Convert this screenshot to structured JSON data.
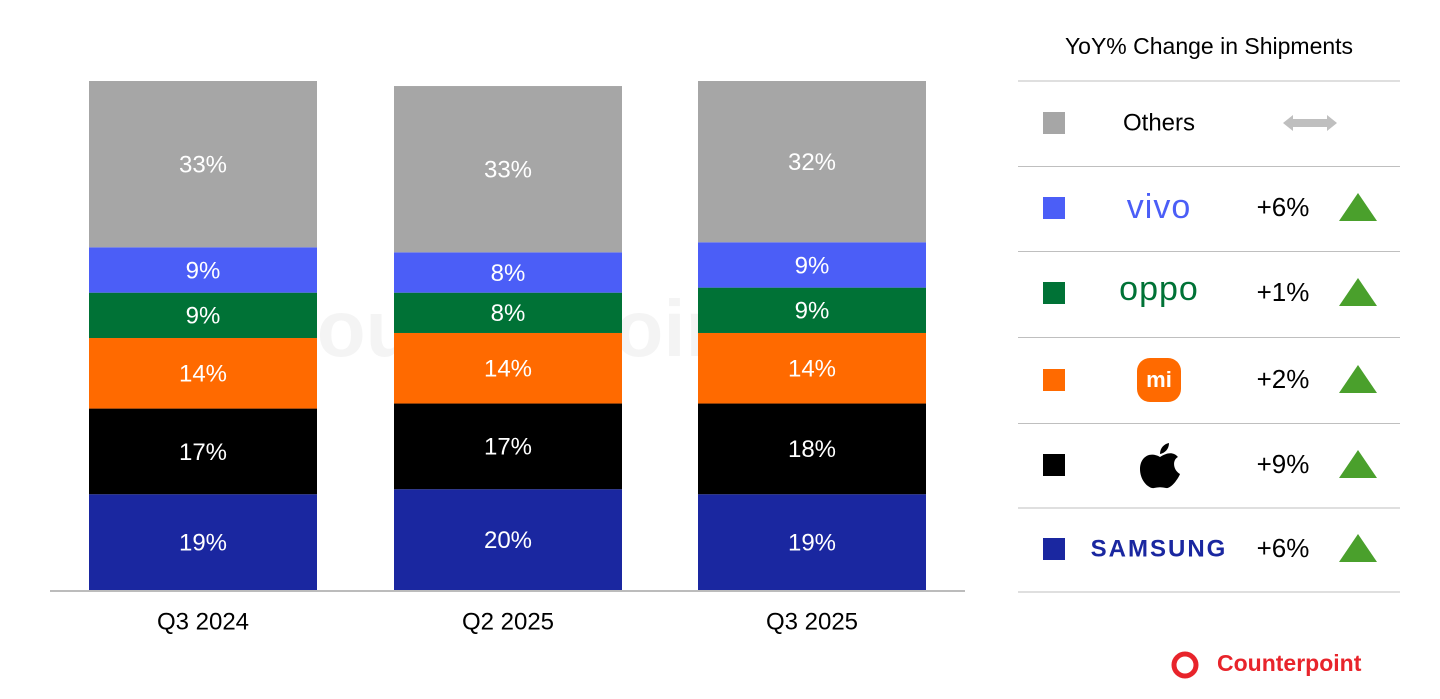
{
  "chart_data": {
    "type": "stacked_bar",
    "categories": [
      "Q3 2024",
      "Q2 2025",
      "Q3 2025"
    ],
    "ylim": [
      0,
      101
    ],
    "series": [
      {
        "name": "SAMSUNG",
        "color": "#1a27a0",
        "values": [
          19,
          20,
          19
        ],
        "value_labels": [
          "19%",
          "20%",
          "19%"
        ],
        "yoy": "+6%"
      },
      {
        "color": "#000000",
        "values": [
          17,
          17,
          18
        ],
        "value_labels": [
          "17%",
          "17%",
          "18%"
        ],
        "yoy": "+9%"
      },
      {
        "name": "mi",
        "color": "#ff6a00",
        "values": [
          14,
          14,
          14
        ],
        "value_labels": [
          "14%",
          "14%",
          "14%"
        ],
        "yoy": "+2%"
      },
      {
        "name": "oppo",
        "color": "#007236",
        "values": [
          9,
          8,
          9
        ],
        "value_labels": [
          "9%",
          "8%",
          "9%"
        ],
        "yoy": "+1%"
      },
      {
        "name": "vivo",
        "color": "#4b5ef7",
        "values": [
          9,
          8,
          9
        ],
        "value_labels": [
          "9%",
          "8%",
          "9%"
        ],
        "yoy": "+6%"
      },
      {
        "name": "Others",
        "color": "#a6a6a6",
        "values": [
          33,
          33,
          32
        ],
        "value_labels": [
          "33%",
          "33%",
          "32%"
        ]
      }
    ],
    "legend_title": "YoY% Change in Shipments",
    "source": "Counterpoint"
  }
}
